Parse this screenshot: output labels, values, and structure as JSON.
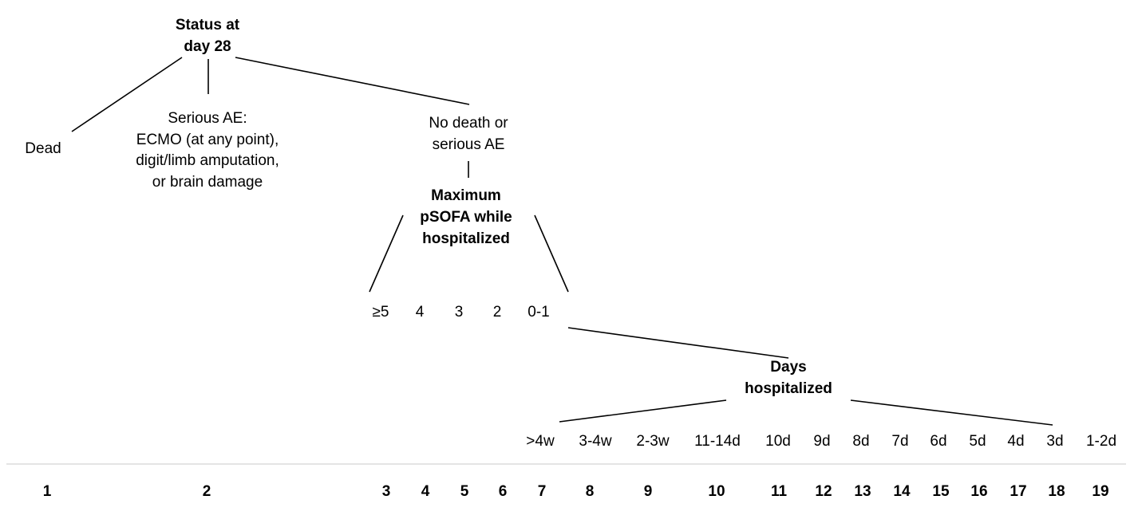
{
  "root": {
    "line1": "Status at",
    "line2": "day 28"
  },
  "dead": "Dead",
  "serious_ae": {
    "line1": "Serious AE:",
    "line2": "ECMO (at any point),",
    "line3": "digit/limb amputation,",
    "line4": "or brain damage"
  },
  "no_death": {
    "line1": "No death or",
    "line2": "serious AE"
  },
  "psofa": {
    "line1": "Maximum",
    "line2": "pSOFA while",
    "line3": "hospitalized"
  },
  "psofa_levels": [
    "≥5",
    "4",
    "3",
    "2",
    "0-1"
  ],
  "days": {
    "line1": "Days",
    "line2": "hospitalized"
  },
  "days_levels": [
    ">4w",
    "3-4w",
    "2-3w",
    "11-14d",
    "10d",
    "9d",
    "8d",
    "7d",
    "6d",
    "5d",
    "4d",
    "3d",
    "1-2d"
  ],
  "ranks": [
    "1",
    "2",
    "3",
    "4",
    "5",
    "6",
    "7",
    "8",
    "9",
    "10",
    "11",
    "12",
    "13",
    "14",
    "15",
    "16",
    "17",
    "18",
    "19"
  ]
}
